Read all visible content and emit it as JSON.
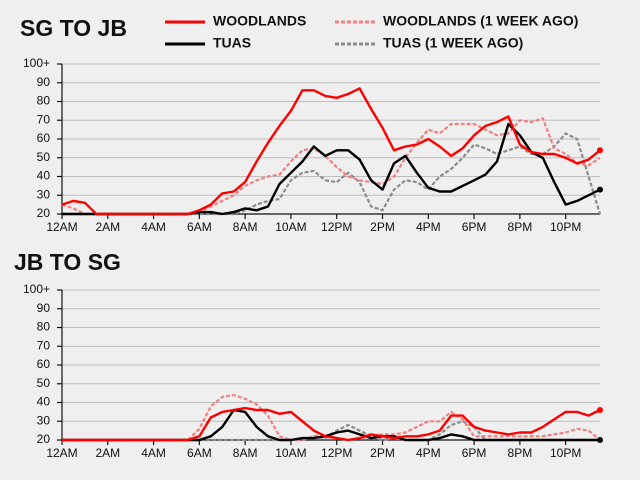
{
  "chart_data": [
    {
      "type": "line",
      "title": "SG TO JB",
      "x": [
        0,
        0.5,
        1,
        1.5,
        2,
        2.5,
        3,
        3.5,
        4,
        4.5,
        5,
        5.5,
        6,
        6.5,
        7,
        7.5,
        8,
        8.5,
        9,
        9.5,
        10,
        10.5,
        11,
        11.5,
        12,
        12.5,
        13,
        13.5,
        14,
        14.5,
        15,
        15.5,
        16,
        16.5,
        17,
        17.5,
        18,
        18.5,
        19,
        19.5,
        20,
        20.5,
        21,
        21.5,
        22,
        22.5,
        23,
        23.5
      ],
      "xlim": [
        0,
        23.5
      ],
      "xticks": [
        {
          "value": 0,
          "label": "12AM"
        },
        {
          "value": 2,
          "label": "2AM"
        },
        {
          "value": 4,
          "label": "4AM"
        },
        {
          "value": 6,
          "label": "6AM"
        },
        {
          "value": 8,
          "label": "8AM"
        },
        {
          "value": 10,
          "label": "10AM"
        },
        {
          "value": 12,
          "label": "12PM"
        },
        {
          "value": 14,
          "label": "2PM"
        },
        {
          "value": 16,
          "label": "4PM"
        },
        {
          "value": 18,
          "label": "6PM"
        },
        {
          "value": 20,
          "label": "8PM"
        },
        {
          "value": 22,
          "label": "10PM"
        }
      ],
      "ylim": [
        20,
        100
      ],
      "yticks": [
        20,
        30,
        40,
        50,
        60,
        70,
        80,
        90,
        {
          "value": 100,
          "label": "100+"
        }
      ],
      "grid": true,
      "series": [
        {
          "name": "WOODLANDS",
          "color": "#ff0000",
          "dashed": false,
          "end_dot": true,
          "values": [
            25,
            27,
            26,
            20,
            20,
            20,
            20,
            20,
            20,
            20,
            20,
            20,
            22,
            25,
            31,
            32,
            37,
            48,
            58,
            67,
            75,
            86,
            86,
            83,
            82,
            84,
            87,
            76,
            66,
            54,
            56,
            57,
            60,
            56,
            51,
            55,
            62,
            67,
            69,
            72,
            57,
            53,
            52,
            52,
            50,
            47,
            49,
            54
          ]
        },
        {
          "name": "WOODLANDS (1 WEEK AGO)",
          "color": "#f08080",
          "dashed": true,
          "end_dot": false,
          "values": [
            25,
            23,
            20,
            20,
            20,
            20,
            20,
            20,
            20,
            20,
            20,
            20,
            21,
            24,
            27,
            30,
            35,
            38,
            40,
            41,
            48,
            54,
            55,
            51,
            45,
            40,
            38,
            37,
            36,
            40,
            50,
            58,
            65,
            63,
            68,
            68,
            68,
            65,
            62,
            63,
            70,
            69,
            71,
            55,
            52,
            47,
            46,
            50
          ]
        },
        {
          "name": "TUAS",
          "color": "#000000",
          "dashed": false,
          "end_dot": true,
          "values": [
            20,
            20,
            20,
            20,
            20,
            20,
            20,
            20,
            20,
            20,
            20,
            20,
            21,
            21,
            20,
            21,
            23,
            22,
            24,
            36,
            42,
            48,
            56,
            51,
            54,
            54,
            49,
            38,
            33,
            47,
            51,
            42,
            34,
            32,
            32,
            35,
            38,
            41,
            48,
            68,
            62,
            53,
            50,
            37,
            25,
            27,
            30,
            33
          ]
        },
        {
          "name": "TUAS (1 WEEK AGO)",
          "color": "#8c8c8c",
          "dashed": true,
          "end_dot": false,
          "values": [
            20,
            20,
            20,
            20,
            20,
            20,
            20,
            20,
            20,
            20,
            20,
            20,
            20,
            20,
            20,
            20,
            22,
            25,
            27,
            28,
            38,
            42,
            43,
            38,
            37,
            42,
            37,
            24,
            22,
            33,
            38,
            37,
            33,
            40,
            44,
            50,
            57,
            55,
            52,
            54,
            56,
            52,
            52,
            56,
            63,
            60,
            40,
            20
          ]
        }
      ]
    },
    {
      "type": "line",
      "title": "JB TO SG",
      "x": [
        0,
        0.5,
        1,
        1.5,
        2,
        2.5,
        3,
        3.5,
        4,
        4.5,
        5,
        5.5,
        6,
        6.5,
        7,
        7.5,
        8,
        8.5,
        9,
        9.5,
        10,
        10.5,
        11,
        11.5,
        12,
        12.5,
        13,
        13.5,
        14,
        14.5,
        15,
        15.5,
        16,
        16.5,
        17,
        17.5,
        18,
        18.5,
        19,
        19.5,
        20,
        20.5,
        21,
        21.5,
        22,
        22.5,
        23,
        23.5
      ],
      "xlim": [
        0,
        23.5
      ],
      "xticks": [
        {
          "value": 0,
          "label": "12AM"
        },
        {
          "value": 2,
          "label": "2AM"
        },
        {
          "value": 4,
          "label": "4AM"
        },
        {
          "value": 6,
          "label": "6AM"
        },
        {
          "value": 8,
          "label": "8AM"
        },
        {
          "value": 10,
          "label": "10AM"
        },
        {
          "value": 12,
          "label": "12PM"
        },
        {
          "value": 14,
          "label": "2PM"
        },
        {
          "value": 16,
          "label": "4PM"
        },
        {
          "value": 18,
          "label": "6PM"
        },
        {
          "value": 20,
          "label": "8PM"
        },
        {
          "value": 22,
          "label": "10PM"
        }
      ],
      "ylim": [
        20,
        100
      ],
      "yticks": [
        20,
        30,
        40,
        50,
        60,
        70,
        80,
        90,
        {
          "value": 100,
          "label": "100+"
        }
      ],
      "grid": true,
      "series": [
        {
          "name": "WOODLANDS",
          "color": "#ff0000",
          "dashed": false,
          "end_dot": true,
          "values": [
            20,
            20,
            20,
            20,
            20,
            20,
            20,
            20,
            20,
            20,
            20,
            20,
            22,
            32,
            35,
            36,
            37,
            36,
            36,
            34,
            35,
            30,
            25,
            22,
            21,
            20,
            21,
            23,
            22,
            21,
            22,
            22,
            23,
            25,
            33,
            33,
            27,
            25,
            24,
            23,
            24,
            24,
            27,
            31,
            35,
            35,
            33,
            36
          ]
        },
        {
          "name": "WOODLANDS (1 WEEK AGO)",
          "color": "#f08080",
          "dashed": true,
          "end_dot": false,
          "values": [
            20,
            20,
            20,
            20,
            20,
            20,
            20,
            20,
            20,
            20,
            20,
            20,
            26,
            38,
            43,
            44,
            42,
            39,
            33,
            22,
            20,
            20,
            22,
            23,
            21,
            20,
            21,
            22,
            23,
            23,
            24,
            27,
            30,
            30,
            35,
            31,
            22,
            22,
            22,
            22,
            22,
            22,
            22,
            23,
            24,
            26,
            25,
            20
          ]
        },
        {
          "name": "TUAS",
          "color": "#000000",
          "dashed": false,
          "end_dot": true,
          "values": [
            20,
            20,
            20,
            20,
            20,
            20,
            20,
            20,
            20,
            20,
            20,
            20,
            20,
            22,
            27,
            36,
            35,
            27,
            22,
            20,
            20,
            21,
            21,
            22,
            24,
            25,
            23,
            21,
            22,
            22,
            20,
            20,
            20,
            21,
            23,
            22,
            20,
            20,
            20,
            20,
            20,
            20,
            20,
            20,
            20,
            20,
            20,
            20
          ]
        },
        {
          "name": "TUAS (1 WEEK AGO)",
          "color": "#8c8c8c",
          "dashed": true,
          "end_dot": false,
          "values": [
            20,
            20,
            20,
            20,
            20,
            20,
            20,
            20,
            20,
            20,
            20,
            20,
            20,
            20,
            20,
            20,
            20,
            20,
            20,
            20,
            20,
            20,
            22,
            21,
            25,
            28,
            25,
            22,
            20,
            21,
            20,
            20,
            20,
            23,
            28,
            30,
            27,
            20,
            20,
            20,
            20,
            20,
            20,
            20,
            20,
            20,
            20,
            20
          ]
        }
      ]
    }
  ]
}
